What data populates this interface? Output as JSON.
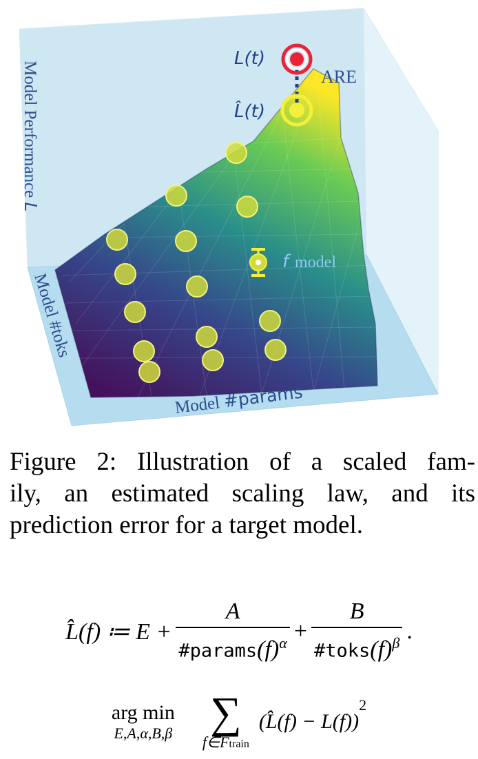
{
  "figure": {
    "axis_performance": "Model Performance ",
    "axis_performance_var": "L",
    "axis_toks": "Model #toks",
    "axis_params_word": "Model ",
    "axis_params_mono": "#params",
    "label_target": "L(t)",
    "label_pred": "L̂(t)",
    "label_are": "ARE",
    "label_f": "f",
    "label_model": "model",
    "colors": {
      "wall": "#cfe6f3",
      "floor": "#b6dcef",
      "point_fill": "#d5df3a",
      "target_ring": "#e8233a",
      "pred_ring": "#f5ee3a",
      "text_blue": "#2a4d8f"
    }
  },
  "caption": {
    "line1": "Figure 2: Illustration of a scaled fam-",
    "line2": "ily, an estimated scaling law, and its",
    "line3": "prediction error for a target model."
  },
  "equation1": {
    "lhs": "L̂(f) ≔ E +",
    "num1": "A",
    "den1_mono": "#params",
    "den1_rest": "(f)",
    "den1_exp": "α",
    "plus": "+",
    "num2": "B",
    "den2_mono": "#toks",
    "den2_rest": "(f)",
    "den2_exp": "β",
    "end": "."
  },
  "equation2": {
    "argmin": "arg min",
    "argmin_sub": "E,A,α,B,β",
    "sum": "∑",
    "sum_sub": "f∈F",
    "sum_sub_train": "train",
    "body": "(L̂(f) − L(f))",
    "body_exp": "2"
  }
}
